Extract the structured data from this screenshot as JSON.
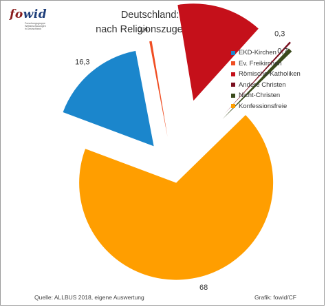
{
  "logo": {
    "fo": "fo",
    "wid": "wid",
    "subtitle_lines": [
      "Forschungsgruppe",
      "Weltanschauungen",
      "in Deutschland"
    ]
  },
  "title_lines": [
    "Deutschland: Atheisten",
    "nach Religionszugehörigkeit, 2018"
  ],
  "source": "Quelle: ALLBUS 2018, eigene Auswertung",
  "credit": "Grafik: fowid/CF",
  "chart_data": {
    "type": "pie",
    "title": "Deutschland: Atheisten nach Religionszugehörigkeit, 2018",
    "exploded": true,
    "legend_position": "right",
    "slices": [
      {
        "name": "EKD-Kirchen",
        "value": 16.3,
        "label": "16,3",
        "color": "#1B86CC"
      },
      {
        "name": "Ev. Freikirchen",
        "value": 0.4,
        "label": "0,4",
        "color": "#F04E23"
      },
      {
        "name": "Römische-Katholiken",
        "value": 14.3,
        "label": "14,3",
        "color": "#C5101A"
      },
      {
        "name": "Andere Christen",
        "value": 0.3,
        "label": "0,3",
        "color": "#7A1020"
      },
      {
        "name": "Nicht-Christen",
        "value": 0.7,
        "label": "0,7",
        "color": "#3A4A1C"
      },
      {
        "name": "Konfessionsfreie",
        "value": 68,
        "label": "68",
        "color": "#FF9E00"
      }
    ]
  }
}
